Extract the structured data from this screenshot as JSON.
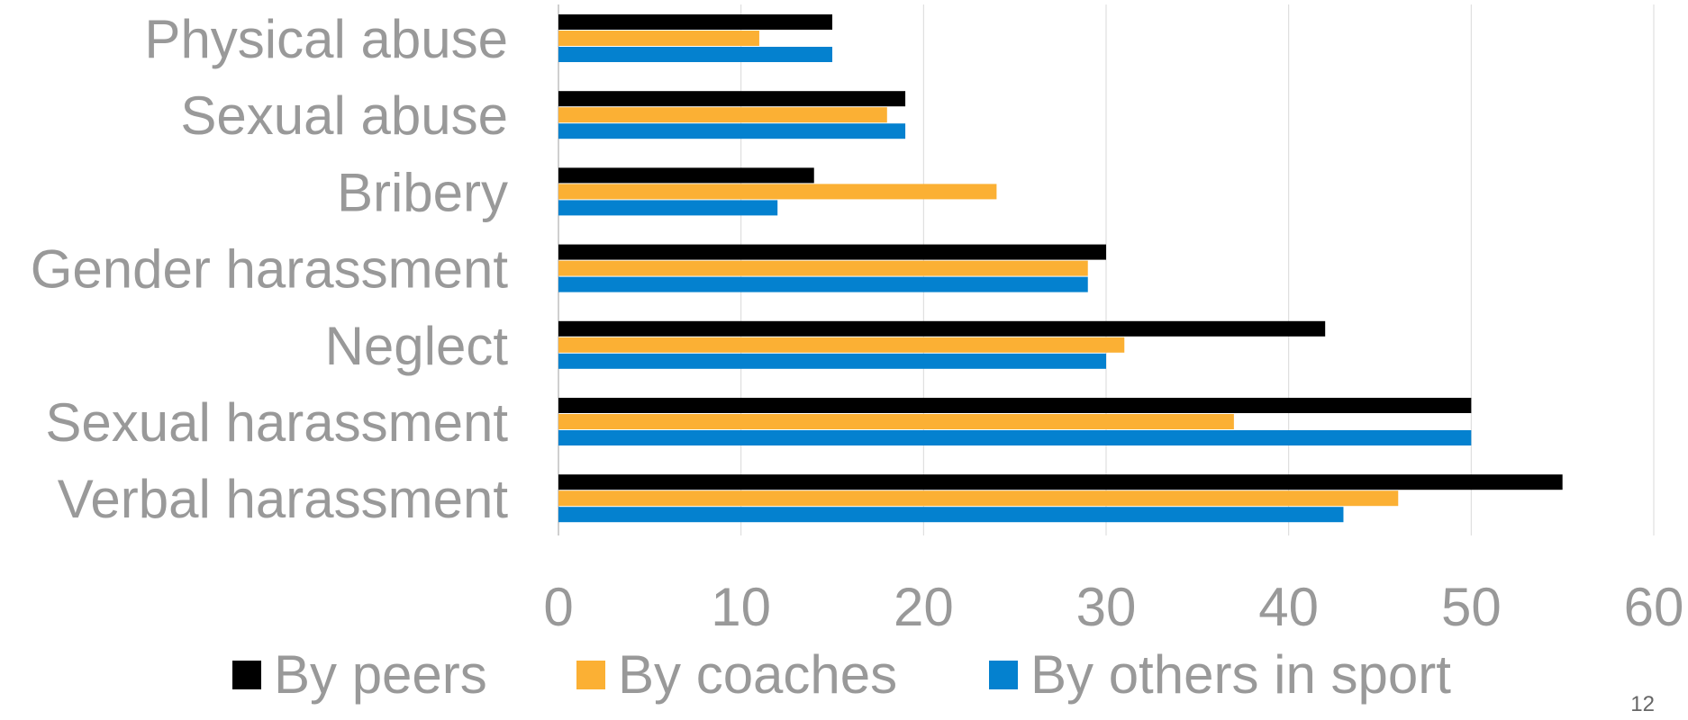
{
  "chart_data": {
    "type": "bar",
    "orientation": "horizontal",
    "categories": [
      "Physical abuse",
      "Sexual abuse",
      "Bribery",
      "Gender harassment",
      "Neglect",
      "Sexual harassment",
      "Verbal harassment"
    ],
    "series": [
      {
        "name": "By peers",
        "color": "#000000",
        "values": [
          15,
          19,
          14,
          30,
          42,
          50,
          55
        ]
      },
      {
        "name": "By coaches",
        "color": "#FBB034",
        "values": [
          11,
          18,
          24,
          29,
          31,
          37,
          46
        ]
      },
      {
        "name": "By others in sport",
        "color": "#0481CF",
        "values": [
          15,
          19,
          12,
          29,
          30,
          50,
          43
        ]
      }
    ],
    "xlim": [
      0,
      60
    ],
    "xticks": [
      "0",
      "10",
      "20",
      "30",
      "40",
      "50",
      "60"
    ],
    "grid": "vertical",
    "legend_position": "bottom",
    "title": "",
    "xlabel": "",
    "ylabel": ""
  },
  "page_number": "12"
}
